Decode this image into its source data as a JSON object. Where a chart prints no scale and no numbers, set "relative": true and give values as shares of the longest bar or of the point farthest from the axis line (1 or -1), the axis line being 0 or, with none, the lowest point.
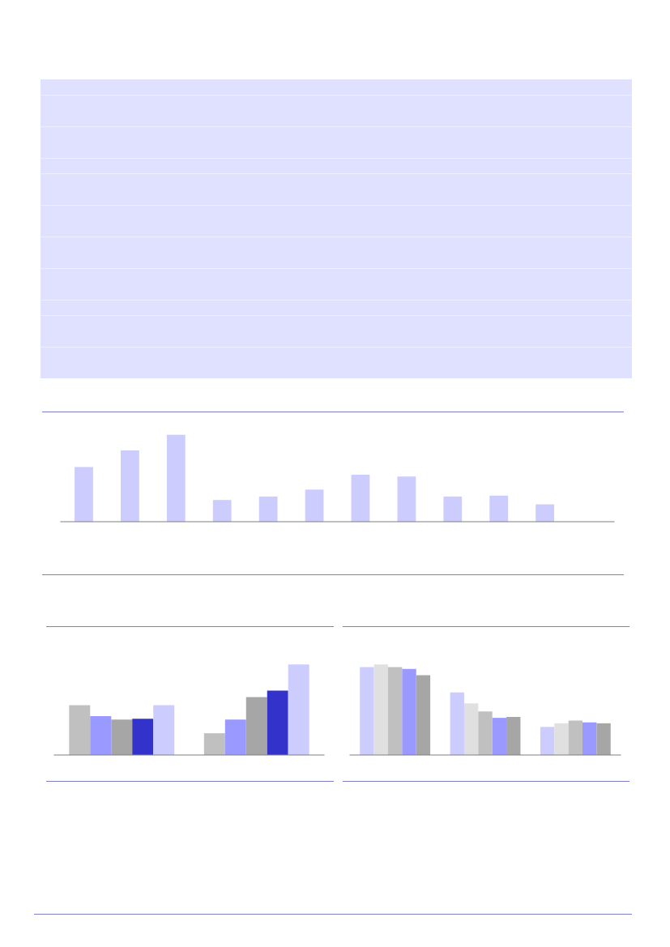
{
  "chart_data": [
    {
      "type": "bar",
      "relative": true,
      "categories": [
        null,
        null,
        null,
        null,
        null,
        null,
        null,
        null,
        null,
        null,
        null
      ],
      "series": [
        {
          "color": "#ccccff",
          "values": [
            0.63,
            0.82,
            1,
            0.25,
            0.29,
            0.37,
            0.54,
            0.52,
            0.29,
            0.3,
            0.2
          ]
        }
      ]
    },
    {
      "type": "bar",
      "relative": true,
      "categories": [
        null,
        null
      ],
      "series": [
        {
          "color": "#c0c0c0",
          "values": [
            0.55,
            0.24
          ]
        },
        {
          "color": "#9999ff",
          "values": [
            0.43,
            0.39
          ]
        },
        {
          "color": "#a6a6a6",
          "values": [
            0.39,
            0.64
          ]
        },
        {
          "color": "#3333cc",
          "values": [
            0.4,
            0.71
          ]
        },
        {
          "color": "#ccccff",
          "values": [
            0.55,
            1
          ]
        }
      ]
    },
    {
      "type": "bar",
      "relative": true,
      "categories": [
        null,
        null,
        null
      ],
      "series": [
        {
          "color": "#ccccff",
          "values": [
            0.97,
            0.69,
            0.31
          ]
        },
        {
          "color": "#e0e0e0",
          "values": [
            1,
            0.57,
            0.35
          ]
        },
        {
          "color": "#c0c0c0",
          "values": [
            0.97,
            0.48,
            0.38
          ]
        },
        {
          "color": "#9999ff",
          "values": [
            0.95,
            0.41,
            0.36
          ]
        },
        {
          "color": "#a6a6a6",
          "values": [
            0.88,
            0.42,
            0.35
          ]
        }
      ]
    }
  ]
}
